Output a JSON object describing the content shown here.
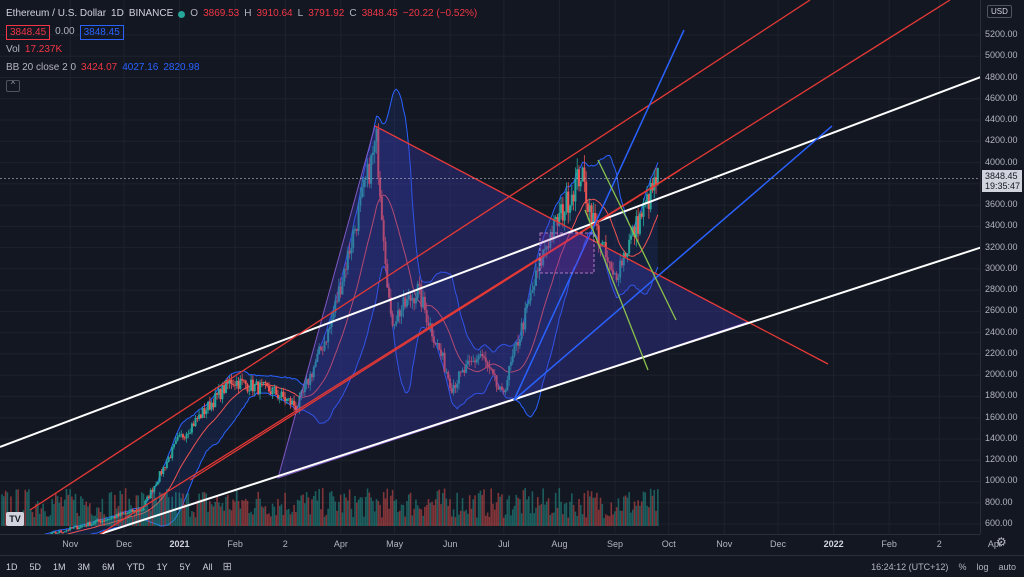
{
  "header": {
    "symbol": "Ethereum / U.S. Dollar",
    "interval": "1D",
    "exchange": "BINANCE",
    "o_label": "O",
    "o": "3869.53",
    "h_label": "H",
    "h": "3910.64",
    "l_label": "L",
    "l": "3791.92",
    "c_label": "C",
    "c": "3848.45",
    "change": "−20.22 (−0.52%)",
    "sell_price": "3848.45",
    "spread": "0.00",
    "buy_price": "3848.45"
  },
  "indicators": {
    "vol_label": "Vol",
    "vol_value": "17.237K",
    "bb_label": "BB 20 close 2 0",
    "bb_basis": "3424.07",
    "bb_upper": "4027.16",
    "bb_lower": "2820.98",
    "collapse": "^"
  },
  "price_axis": {
    "currency": "USD",
    "ticks": [
      "5200.00",
      "5000.00",
      "4800.00",
      "4600.00",
      "4400.00",
      "4200.00",
      "4000.00",
      "3800.00",
      "3600.00",
      "3400.00",
      "3200.00",
      "3000.00",
      "2800.00",
      "2600.00",
      "2400.00",
      "2200.00",
      "2000.00",
      "1800.00",
      "1600.00",
      "1400.00",
      "1200.00",
      "1000.00",
      "800.00",
      "600.00"
    ],
    "last_price": "3848.45",
    "countdown": "19:35:47"
  },
  "time_axis": {
    "ticks": [
      {
        "label": "Nov",
        "bold": false
      },
      {
        "label": "Dec",
        "bold": false
      },
      {
        "label": "2021",
        "bold": true
      },
      {
        "label": "Feb",
        "bold": false
      },
      {
        "label": "2",
        "bold": false
      },
      {
        "label": "Apr",
        "bold": false
      },
      {
        "label": "May",
        "bold": false
      },
      {
        "label": "Jun",
        "bold": false
      },
      {
        "label": "Jul",
        "bold": false
      },
      {
        "label": "Aug",
        "bold": false
      },
      {
        "label": "Sep",
        "bold": false
      },
      {
        "label": "Oct",
        "bold": false
      },
      {
        "label": "Nov",
        "bold": false
      },
      {
        "label": "Dec",
        "bold": false
      },
      {
        "label": "2022",
        "bold": true
      },
      {
        "label": "Feb",
        "bold": false
      },
      {
        "label": "2",
        "bold": false
      },
      {
        "label": "Apr",
        "bold": false
      }
    ]
  },
  "bottom_bar": {
    "ranges": [
      "1D",
      "5D",
      "1M",
      "3M",
      "6M",
      "YTD",
      "1Y",
      "5Y",
      "All"
    ],
    "time": "16:24:12 (UTC+12)",
    "percent": "%",
    "log": "log",
    "auto": "auto"
  },
  "logo_text": "TV",
  "colors": {
    "background": "#131722",
    "up": "#26a69a",
    "down": "#ef5350",
    "bb_fill": "#2962ff",
    "triangle": "#3d3a9e",
    "white_channel": "#ffffff",
    "red_channel": "#e53935",
    "blue_channel": "#2962ff",
    "green_channel": "#8bc34a"
  },
  "chart_data": {
    "type": "candlestick",
    "series_name": "Ethereum / U.S. Dollar",
    "ylim": [
      550,
      5400
    ],
    "x_domain": [
      "2020-10-14",
      "2022-04-10"
    ],
    "anchors": [
      {
        "date": "2020-10-14",
        "close": 380
      },
      {
        "date": "2020-11-25",
        "close": 570
      },
      {
        "date": "2020-12-31",
        "close": 740
      },
      {
        "date": "2021-01-20",
        "close": 1380
      },
      {
        "date": "2021-02-19",
        "close": 1950
      },
      {
        "date": "2021-03-14",
        "close": 1850
      },
      {
        "date": "2021-03-28",
        "close": 1700
      },
      {
        "date": "2021-04-15",
        "close": 2450
      },
      {
        "date": "2021-05-11",
        "close": 4200
      },
      {
        "date": "2021-05-19",
        "close": 2500
      },
      {
        "date": "2021-06-03",
        "close": 2800
      },
      {
        "date": "2021-06-22",
        "close": 1900
      },
      {
        "date": "2021-07-08",
        "close": 2200
      },
      {
        "date": "2021-07-20",
        "close": 1800
      },
      {
        "date": "2021-08-13",
        "close": 3200
      },
      {
        "date": "2021-09-02",
        "close": 3900
      },
      {
        "date": "2021-09-08",
        "close": 3500
      },
      {
        "date": "2021-09-20",
        "close": 2900
      },
      {
        "date": "2021-10-03",
        "close": 3400
      },
      {
        "date": "2021-10-15",
        "close": 3850
      }
    ]
  }
}
